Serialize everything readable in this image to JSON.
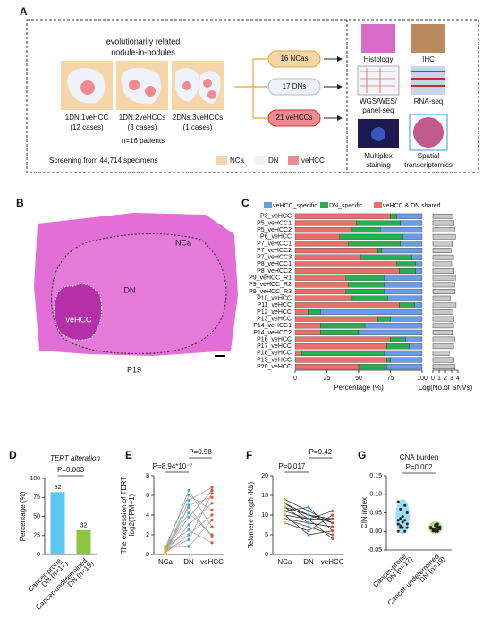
{
  "panel_labels": [
    "A",
    "B",
    "C",
    "D",
    "E",
    "F",
    "G"
  ],
  "panel_a": {
    "heading": [
      "evolutionarily related",
      "nodule-in-nodules"
    ],
    "models": [
      {
        "ratio": "1DN:1veHCC",
        "cases": "(12 cases)"
      },
      {
        "ratio": "1DN:2veHCCs",
        "cases": "(3 cases)"
      },
      {
        "ratio": "2DNs:3veHCCs",
        "cases": "(1 cases)"
      }
    ],
    "patients": "n=16 patients",
    "screening": "Screening from 44,714 specimens",
    "legend": [
      "NCa",
      "DN",
      "veHCC"
    ],
    "groups": [
      "16 NCas",
      "17 DNs",
      "21 veHCCs"
    ],
    "assays": [
      "Histology",
      "IHC",
      "WGS/WES/",
      "panel-seq",
      "RNA-seq",
      "Multiplex",
      "staining",
      "Spatial",
      "transcriptomics"
    ]
  },
  "panel_b": {
    "regions": [
      "NCa",
      "DN",
      "veHCC"
    ],
    "sample": "P19"
  },
  "chart_data": [
    {
      "type": "hbar_stacked",
      "xlabel": "Percentage (%)",
      "categories": [
        "P3_veHCC",
        "P5_veHCC1",
        "P5_veHCC2",
        "P6_veHCC",
        "P7_veHCC1",
        "P7_veHCC2",
        "P7_veHCC3",
        "P8_veHCC1",
        "P8_veHCC2",
        "P9_veHCC_R1",
        "P9_veHCC_R2",
        "P9_veHCC_R3",
        "P10_veHCC",
        "P11_veHCC",
        "P12_veHCC",
        "P13_veHCC",
        "P14_veHCC1",
        "P14_veHCC2",
        "P16_veHCC",
        "P17_veHCC",
        "P18_veHCC",
        "P19_veHCC",
        "P20_veHCC"
      ],
      "series": [
        {
          "name": "veHCC & DN shared",
          "color": "#e8706a",
          "values": [
            75,
            48,
            45,
            35,
            42,
            65,
            52,
            80,
            82,
            40,
            42,
            40,
            45,
            82,
            10,
            65,
            20,
            20,
            75,
            72,
            5,
            72,
            50
          ]
        },
        {
          "name": "DN_specific",
          "color": "#27ae4f",
          "values": [
            5,
            35,
            22,
            50,
            41,
            3,
            40,
            15,
            13,
            30,
            28,
            30,
            28,
            12,
            10,
            10,
            35,
            30,
            12,
            18,
            65,
            3,
            22
          ]
        },
        {
          "name": "veHCC_specific",
          "color": "#6a9be8",
          "values": [
            20,
            17,
            33,
            15,
            17,
            32,
            8,
            5,
            5,
            30,
            30,
            30,
            27,
            6,
            80,
            25,
            45,
            50,
            13,
            10,
            30,
            25,
            28
          ]
        }
      ],
      "legend_order": [
        2,
        1,
        0
      ],
      "xlim": [
        0,
        100
      ],
      "xticks": [
        0,
        25,
        50,
        75,
        100
      ]
    },
    {
      "type": "hbar",
      "xlabel": "Log(No.of SNVs)",
      "color": "#c8c8c8",
      "values": [
        3.2,
        3.4,
        3.5,
        3.6,
        3.1,
        2.9,
        3.3,
        3.0,
        3.4,
        3.6,
        3.5,
        3.5,
        2.8,
        3.7,
        3.2,
        3.4,
        3.3,
        3.1,
        3.5,
        3.3,
        2.6,
        3.4,
        3.5
      ],
      "xlim": [
        0,
        4
      ],
      "xticks": [
        0,
        1,
        2,
        3,
        4
      ]
    },
    {
      "type": "bar",
      "title": "TERT alteration",
      "ylabel": [
        "Percentage (%)"
      ],
      "categories": [
        "Cancer-prone",
        "Cancer-undetermined"
      ],
      "subcategories": [
        "DN (n=17)",
        "DN (n=19)"
      ],
      "values": [
        82,
        32
      ],
      "colors": [
        "#5bc8f0",
        "#8dc63f"
      ],
      "annotations": [
        "P=0.003"
      ],
      "ylim": [
        0,
        100
      ],
      "yticks": [
        0,
        25,
        50,
        75,
        100
      ]
    },
    {
      "type": "paired",
      "ylabel": [
        "The expression of TERT",
        "log2(TPM+1)"
      ],
      "categories": [
        "NCa",
        "DN",
        "veHCC"
      ],
      "colors": [
        "#f5a623",
        "#4aa3df",
        "#e74c3c"
      ],
      "line_color": "#9a9a9a",
      "annotations": [
        "P=8.94*10⁻⁷",
        "P=0.58"
      ],
      "series": [
        {
          "values": [
            0.3,
            5.5,
            6.8
          ]
        },
        {
          "values": [
            0.5,
            4.2,
            2.0
          ]
        },
        {
          "values": [
            0.2,
            3.0,
            5.2
          ]
        },
        {
          "values": [
            0.8,
            6.0,
            4.5
          ]
        },
        {
          "values": [
            0.4,
            1.5,
            6.2
          ]
        },
        {
          "values": [
            0.6,
            2.5,
            1.2
          ]
        },
        {
          "values": [
            0.1,
            5.0,
            5.8
          ]
        },
        {
          "values": [
            0.7,
            0.8,
            3.5
          ]
        },
        {
          "values": [
            0.3,
            3.8,
            6.5
          ]
        },
        {
          "values": [
            0.5,
            6.5,
            2.8
          ]
        },
        {
          "values": [
            0.2,
            2.0,
            4.0
          ]
        },
        {
          "values": [
            0.6,
            4.8,
            1.8
          ]
        }
      ],
      "ylim": [
        0,
        8
      ],
      "yticks": [
        0,
        2,
        4,
        6,
        8
      ]
    },
    {
      "type": "paired",
      "ylabel": [
        "Telomere length (Kb)"
      ],
      "categories": [
        "NCa",
        "DN",
        "veHCC"
      ],
      "colors": [
        "#f5a623",
        "#4aa3df",
        "#e74c3c"
      ],
      "line_color": "#222222",
      "annotations": [
        "P=0.017",
        "P=0.42"
      ],
      "series": [
        {
          "values": [
            13,
            10,
            9
          ]
        },
        {
          "values": [
            12,
            8,
            7
          ]
        },
        {
          "values": [
            11,
            12,
            6
          ]
        },
        {
          "values": [
            10,
            9,
            11
          ]
        },
        {
          "values": [
            9,
            7,
            5
          ]
        },
        {
          "values": [
            14,
            11,
            8
          ]
        },
        {
          "values": [
            8,
            6,
            10
          ]
        },
        {
          "values": [
            11,
            9,
            4
          ]
        },
        {
          "values": [
            12,
            10,
            8
          ]
        },
        {
          "values": [
            9,
            8,
            7
          ]
        },
        {
          "values": [
            10,
            5,
            6
          ]
        },
        {
          "values": [
            13,
            9,
            9
          ]
        }
      ],
      "ylim": [
        0,
        20
      ],
      "yticks": [
        0,
        5,
        10,
        15,
        20
      ]
    },
    {
      "type": "strip",
      "title": "CNA burden",
      "ylabel": [
        "CIN index"
      ],
      "categories": [
        "Cancer-prone",
        "Cancer-undetermined"
      ],
      "subcategories": [
        "DN (n=17)",
        "DN (n=19)"
      ],
      "colors": [
        "#5bc8f0",
        "#8dc63f"
      ],
      "annotations": [
        "P=0.002"
      ],
      "values": [
        [
          0.08,
          0.06,
          0.04,
          0.03,
          0.02,
          0.02,
          0.01,
          0.01,
          0.0,
          0.05,
          0.03,
          0.015,
          0.025,
          0.07,
          0.01,
          0.0,
          0.035
        ],
        [
          0.01,
          0.005,
          0.0,
          0.02,
          0.012,
          0.008,
          0.003,
          0.015,
          0.0,
          0.006,
          0.01,
          0.002,
          0.018,
          0.004,
          0.009,
          0.011,
          0.001,
          0.007,
          0.013
        ]
      ],
      "ylim": [
        -0.05,
        0.15
      ],
      "yticks": [
        -0.05,
        {
          "value": 0,
          "label": "0.00"
        },
        0.05,
        {
          "value": 0.1,
          "label": "0.10"
        },
        0.15
      ]
    }
  ]
}
